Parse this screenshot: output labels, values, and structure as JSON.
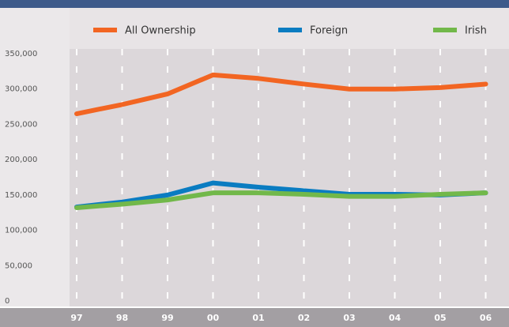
{
  "chart_data": {
    "type": "line",
    "categories": [
      "97",
      "98",
      "99",
      "00",
      "01",
      "02",
      "03",
      "04",
      "05",
      "06"
    ],
    "series": [
      {
        "name": "All Ownership",
        "color": "#f26522",
        "values": [
          265000,
          278000,
          293000,
          320000,
          315000,
          307000,
          300000,
          300000,
          302000,
          307000
        ]
      },
      {
        "name": "Foreign",
        "color": "#0a7cc1",
        "values": [
          133000,
          140000,
          150000,
          167000,
          161000,
          156000,
          151000,
          151000,
          150000,
          153000
        ]
      },
      {
        "name": "Irish",
        "color": "#72b84a",
        "values": [
          132000,
          137000,
          143000,
          153000,
          153000,
          151000,
          148000,
          148000,
          151000,
          153000
        ]
      }
    ],
    "ylim": [
      0,
      350000
    ],
    "yticks": [
      0,
      {
        "value": 50000,
        "label": "50,000"
      },
      {
        "value": 100000,
        "label": "100,000"
      },
      {
        "value": 150000,
        "label": "150,000"
      },
      {
        "value": 200000,
        "label": "200,000"
      },
      {
        "value": 250000,
        "label": "250,000"
      },
      {
        "value": 300000,
        "label": "300,000"
      },
      {
        "value": 350000,
        "label": "350,000"
      }
    ],
    "grid": true,
    "legend": "top"
  }
}
